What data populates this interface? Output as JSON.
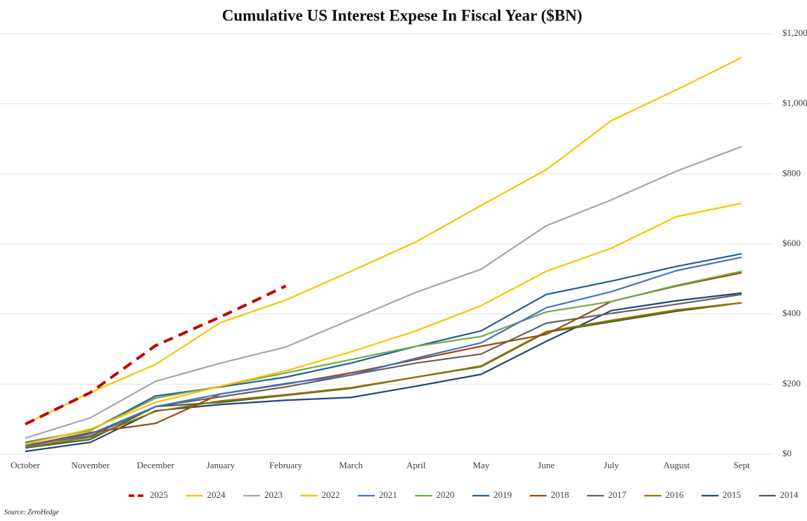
{
  "chart_data": {
    "type": "line",
    "title": "Cumulative US Interest Expese In Fiscal Year ($BN)",
    "source": "Source: ZeroHedge",
    "categories": [
      "October",
      "November",
      "December",
      "January",
      "February",
      "March",
      "April",
      "May",
      "June",
      "July",
      "August",
      "Sept"
    ],
    "ylim": [
      0,
      1200
    ],
    "yticks": [
      {
        "value": 0,
        "label": "$0"
      },
      {
        "value": 200,
        "label": "$200"
      },
      {
        "value": 400,
        "label": "$400"
      },
      {
        "value": 600,
        "label": "$600"
      },
      {
        "value": 800,
        "label": "$800"
      },
      {
        "value": 1000,
        "label": "$1,000"
      },
      {
        "value": 1200,
        "label": "$1,200"
      }
    ],
    "grid": true,
    "legend": "bottom",
    "series": [
      {
        "name": "2025",
        "color": "#c00000",
        "dashed": true,
        "values": [
          86,
          176,
          310,
          392,
          480,
          null,
          null,
          null,
          null,
          null,
          null,
          null
        ]
      },
      {
        "name": "2024",
        "color": "#f5c400",
        "values": [
          86,
          176,
          256,
          376,
          440,
          522,
          606,
          710,
          812,
          952,
          1040,
          1132
        ]
      },
      {
        "name": "2023",
        "color": "#a6a6a6",
        "values": [
          46,
          104,
          208,
          260,
          306,
          384,
          462,
          528,
          652,
          726,
          808,
          878
        ]
      },
      {
        "name": "2022",
        "color": "#ffc000",
        "values": [
          28,
          72,
          148,
          194,
          238,
          292,
          352,
          424,
          522,
          588,
          678,
          716
        ]
      },
      {
        "name": "2021",
        "color": "#4472c4",
        "values": [
          22,
          58,
          136,
          172,
          202,
          226,
          274,
          318,
          418,
          464,
          524,
          562
        ]
      },
      {
        "name": "2020",
        "color": "#70ad47",
        "values": [
          32,
          68,
          160,
          194,
          232,
          270,
          308,
          336,
          406,
          436,
          482,
          522
        ]
      },
      {
        "name": "2019",
        "color": "#255e91",
        "values": [
          34,
          68,
          166,
          192,
          220,
          260,
          308,
          352,
          456,
          494,
          536,
          572
        ]
      },
      {
        "name": "2018",
        "color": "#9e480e",
        "values": [
          24,
          62,
          88,
          172,
          200,
          232,
          270,
          308,
          342,
          436,
          480,
          518
        ]
      },
      {
        "name": "2017",
        "color": "#636363",
        "values": [
          26,
          52,
          136,
          164,
          192,
          226,
          260,
          286,
          374,
          402,
          428,
          456
        ]
      },
      {
        "name": "2016",
        "color": "#997300",
        "values": [
          20,
          48,
          122,
          152,
          170,
          190,
          220,
          252,
          350,
          382,
          412,
          432
        ]
      },
      {
        "name": "2015",
        "color": "#264478",
        "values": [
          8,
          34,
          124,
          142,
          154,
          162,
          194,
          228,
          322,
          410,
          438,
          460
        ]
      },
      {
        "name": "2014",
        "color": "#43682b",
        "values": [
          18,
          42,
          136,
          148,
          168,
          188,
          220,
          250,
          348,
          378,
          408,
          432
        ]
      }
    ]
  }
}
